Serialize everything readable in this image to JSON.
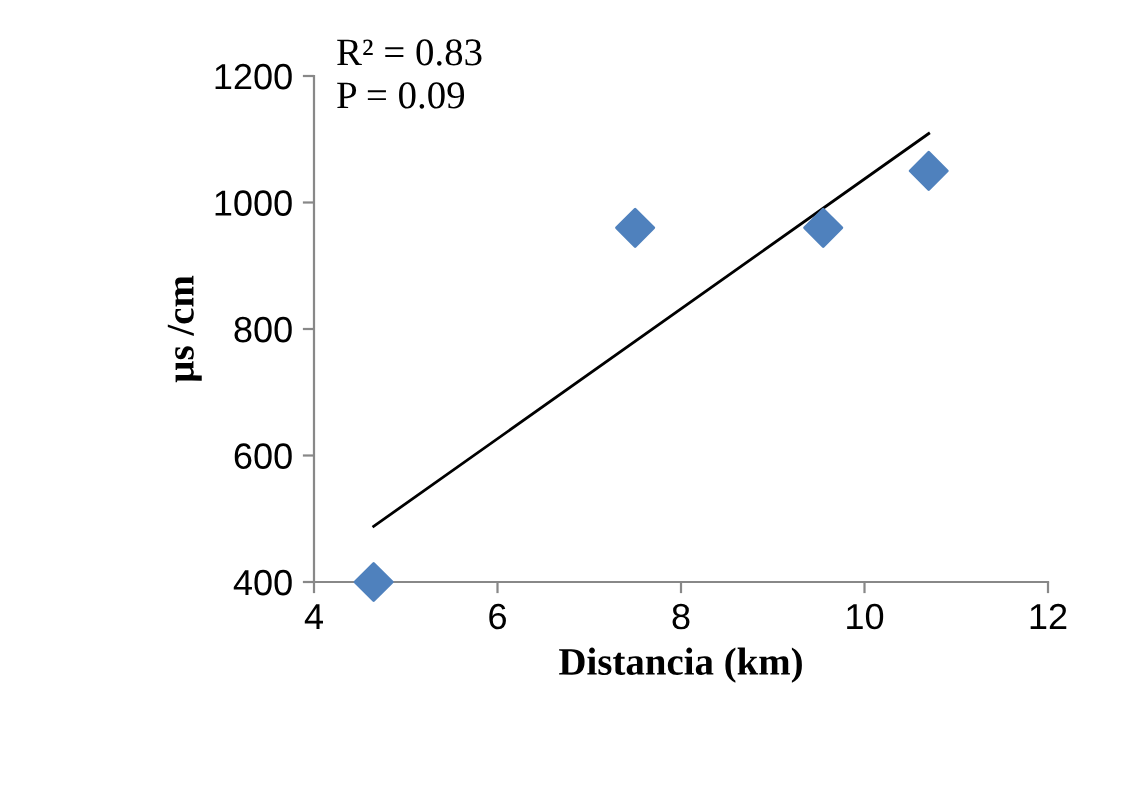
{
  "chart_data": {
    "type": "scatter",
    "xlabel": "Distancia (km)",
    "ylabel": "µs /cm",
    "xlim": [
      4,
      12
    ],
    "xticks": [
      4,
      6,
      8,
      10,
      12
    ],
    "ylim": [
      400,
      1200
    ],
    "yticks": [
      400,
      600,
      800,
      1000,
      1200
    ],
    "grid": false,
    "legend": false,
    "annotations": [
      "R² = 0.83",
      "P = 0.09"
    ],
    "series": [
      {
        "color": "#4f81bd",
        "marker": "diamond",
        "x": [
          4.65,
          7.5,
          9.55,
          10.7
        ],
        "values": [
          400,
          960,
          960,
          1050
        ]
      },
      {
        "type": "line",
        "color": "#000000",
        "marker": "none",
        "line_style": "solid",
        "x": [
          4.65,
          10.7
        ],
        "values": [
          488,
          1109
        ]
      }
    ]
  }
}
